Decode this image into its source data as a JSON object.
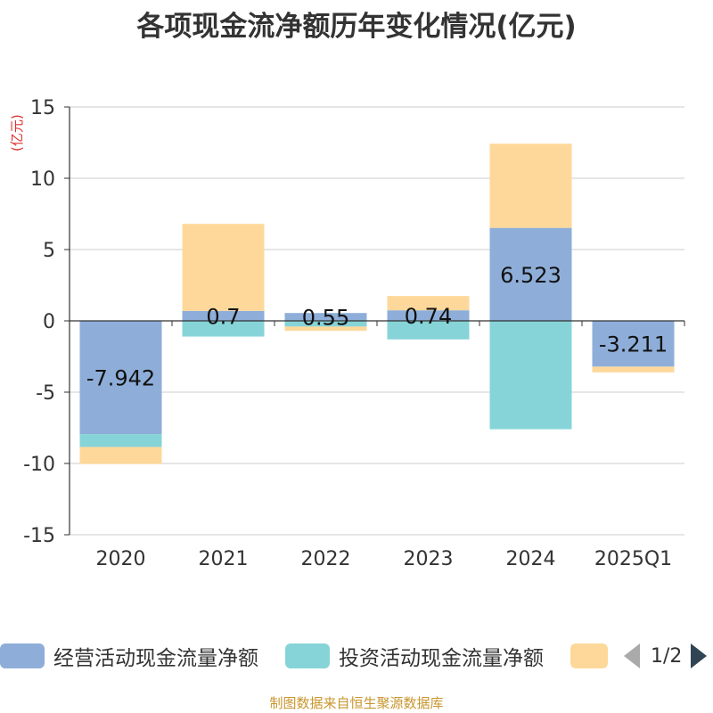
{
  "chart_data": {
    "type": "bar",
    "stacked": true,
    "title": "各项现金流净额历年变化情况(亿元)",
    "ylabel": "(亿元)",
    "ylim": [
      -15,
      15
    ],
    "yticks": [
      15,
      10,
      5,
      0,
      -5,
      -10,
      -15
    ],
    "categories": [
      "2020",
      "2021",
      "2022",
      "2023",
      "2024",
      "2025Q1"
    ],
    "series": [
      {
        "name": "经营活动现金流量净额",
        "color": "#8eaed9",
        "values": [
          -7.942,
          0.7,
          0.55,
          0.74,
          6.523,
          -3.211
        ]
      },
      {
        "name": "投资活动现金流量净额",
        "color": "#86d4d8",
        "values": [
          -0.9,
          -1.1,
          -0.4,
          -1.3,
          -7.6,
          0
        ]
      },
      {
        "name": "",
        "color": "#fdd89a",
        "values": [
          -1.2,
          6.1,
          -0.3,
          1.0,
          5.9,
          -0.4
        ]
      }
    ],
    "data_labels": [
      "-7.942",
      "0.7",
      "0.55",
      "0.74",
      "6.523",
      "-3.211"
    ],
    "legend_position": "bottom"
  },
  "legend": {
    "items": [
      {
        "label": "经营活动现金流量净额",
        "color": "#8eaed9"
      },
      {
        "label": "投资活动现金流量净额",
        "color": "#86d4d8"
      },
      {
        "label": "",
        "color": "#fdd89a"
      }
    ],
    "page_indicator": "1/2"
  },
  "source_text": "制图数据来自恒生聚源数据库"
}
